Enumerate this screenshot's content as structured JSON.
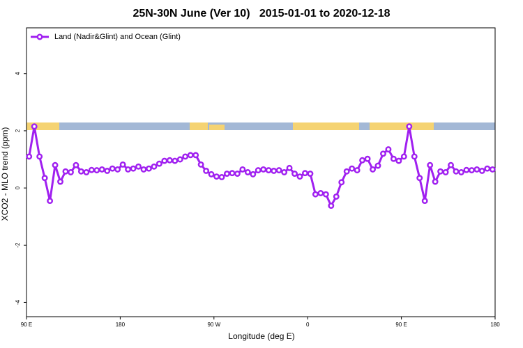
{
  "chart_data": {
    "type": "line",
    "title": "25N-30N June (Ver 10)   2015-01-01 to 2020-12-18",
    "x_label": "Longitude (deg E)",
    "y_label": "XCO2 - MLO trend (ppm)",
    "x": [
      92.5,
      97.5,
      102.5,
      107.5,
      112.5,
      117.5,
      122.5,
      127.5,
      132.5,
      137.5,
      142.5,
      147.5,
      152.5,
      157.5,
      162.5,
      167.5,
      172.5,
      177.5,
      182.5,
      187.5,
      192.5,
      197.5,
      202.5,
      207.5,
      212.5,
      217.5,
      222.5,
      227.5,
      232.5,
      237.5,
      242.5,
      247.5,
      252.5,
      257.5,
      262.5,
      267.5,
      272.5,
      277.5,
      282.5,
      287.5,
      292.5,
      297.5,
      302.5,
      307.5,
      312.5,
      317.5,
      322.5,
      327.5,
      332.5,
      337.5,
      342.5,
      347.5,
      352.5,
      357.5,
      362.5,
      367.5,
      372.5,
      377.5,
      382.5,
      387.5,
      392.5,
      397.5,
      402.5,
      407.5,
      412.5,
      417.5,
      422.5,
      427.5,
      432.5,
      437.5,
      442.5,
      447.5,
      452.5,
      457.5,
      462.5,
      467.5,
      472.5,
      477.5,
      482.5,
      487.5,
      492.5,
      497.5,
      502.5,
      507.5,
      512.5,
      517.5,
      522.5,
      527.5,
      532.5,
      537.5
    ],
    "series": [
      {
        "name": "Land (Nadir&Glint) and Ocean (Glint)",
        "color": "#a020f0",
        "values": [
          1.1,
          2.15,
          1.1,
          0.35,
          -0.45,
          0.8,
          0.22,
          0.58,
          0.55,
          0.8,
          0.58,
          0.55,
          0.63,
          0.62,
          0.65,
          0.6,
          0.68,
          0.65,
          0.82,
          0.65,
          0.68,
          0.75,
          0.65,
          0.68,
          0.75,
          0.85,
          0.95,
          0.97,
          0.95,
          1.0,
          1.1,
          1.15,
          1.15,
          0.82,
          0.6,
          0.48,
          0.4,
          0.38,
          0.5,
          0.52,
          0.5,
          0.65,
          0.55,
          0.48,
          0.62,
          0.65,
          0.62,
          0.6,
          0.62,
          0.55,
          0.7,
          0.5,
          0.4,
          0.52,
          0.5,
          -0.22,
          -0.18,
          -0.22,
          -0.62,
          -0.3,
          0.2,
          0.58,
          0.68,
          0.62,
          0.97,
          1.02,
          0.65,
          0.78,
          1.2,
          1.35,
          1.02,
          0.95,
          1.1,
          2.15,
          1.1,
          0.35,
          -0.45,
          0.8,
          0.22,
          0.58,
          0.55,
          0.8,
          0.58,
          0.55,
          0.63,
          0.62,
          0.65,
          0.6,
          0.68,
          0.65
        ]
      }
    ],
    "xlim": [
      90,
      540
    ],
    "ylim": [
      -4.5,
      5.6
    ],
    "xticks": [
      {
        "value": 90,
        "label": "90 E"
      },
      180,
      {
        "value": 270,
        "label": "90 W"
      },
      {
        "value": 360,
        "label": "0"
      },
      {
        "value": 450,
        "label": "90 E"
      },
      {
        "value": 540,
        "label": "180"
      }
    ],
    "yticks": [
      -4,
      -2,
      0,
      2,
      4
    ],
    "legend": "top-left"
  }
}
